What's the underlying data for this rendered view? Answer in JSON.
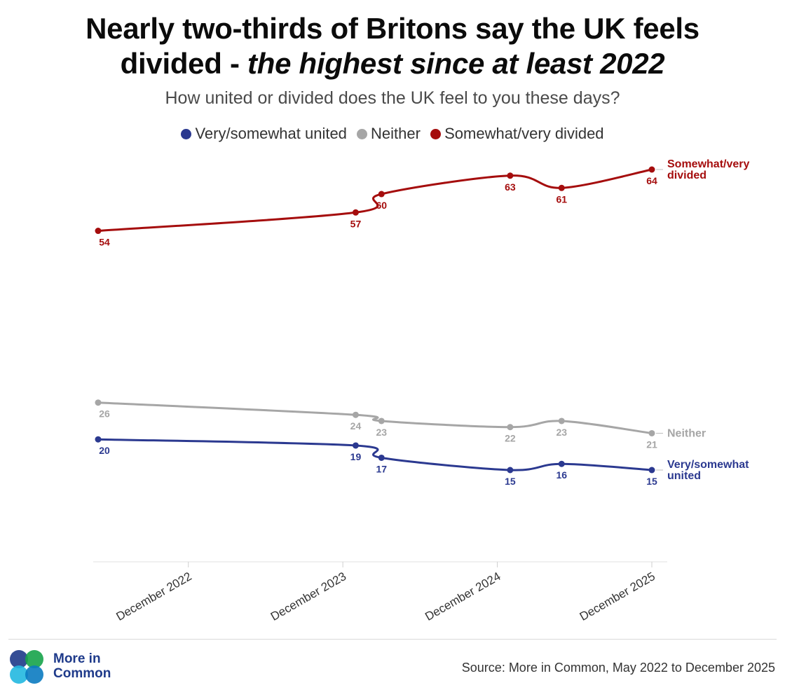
{
  "header": {
    "title_line1": "Nearly two-thirds of Britons say the UK feels",
    "title_line2_prefix": "divided - ",
    "title_line2_italic": "the highest since at least 2022",
    "subtitle": "How united or divided does the UK feel to you these days?"
  },
  "legend": [
    {
      "label": "Very/somewhat united",
      "color": "#2b3990"
    },
    {
      "label": "Neither",
      "color": "#a6a6a6"
    },
    {
      "label": "Somewhat/very divided",
      "color": "#a50d0d"
    }
  ],
  "chart_data": {
    "type": "line",
    "title": "Nearly two-thirds of Britons say the UK feels divided - the highest since at least 2022",
    "subtitle": "How united or divided does the UK feel to you these days?",
    "x_ticks": [
      "December 2022",
      "December 2023",
      "December 2024",
      "December 2025"
    ],
    "x_tick_positions": [
      2022.917,
      2023.917,
      2024.917,
      2025.917
    ],
    "xlim": [
      2022.333,
      2026.0
    ],
    "ylim": [
      0,
      70
    ],
    "series": [
      {
        "name": "Somewhat/very divided",
        "end_label": [
          "Somewhat/very",
          "divided"
        ],
        "color": "#a50d0d",
        "x": [
          2022.333,
          2024.0,
          2024.167,
          2025.0,
          2025.333,
          2025.917
        ],
        "values": [
          54,
          57,
          60,
          63,
          61,
          64
        ]
      },
      {
        "name": "Neither",
        "end_label": [
          "Neither"
        ],
        "color": "#a6a6a6",
        "x": [
          2022.333,
          2024.0,
          2024.167,
          2025.0,
          2025.333,
          2025.917
        ],
        "values": [
          26,
          24,
          23,
          22,
          23,
          21
        ]
      },
      {
        "name": "Very/somewhat united",
        "end_label": [
          "Very/somewhat",
          "united"
        ],
        "color": "#2b3990",
        "x": [
          2022.333,
          2024.0,
          2024.167,
          2025.0,
          2025.333,
          2025.917
        ],
        "values": [
          20,
          19,
          17,
          15,
          16,
          15
        ]
      }
    ]
  },
  "footer": {
    "brand_line1": "More in",
    "brand_line2": "Common",
    "source": "Source: More in Common, May 2022 to December 2025",
    "logo_colors": [
      "#1e3a8a",
      "#16a34a",
      "#22b8e0",
      "#0b7bc1"
    ]
  }
}
